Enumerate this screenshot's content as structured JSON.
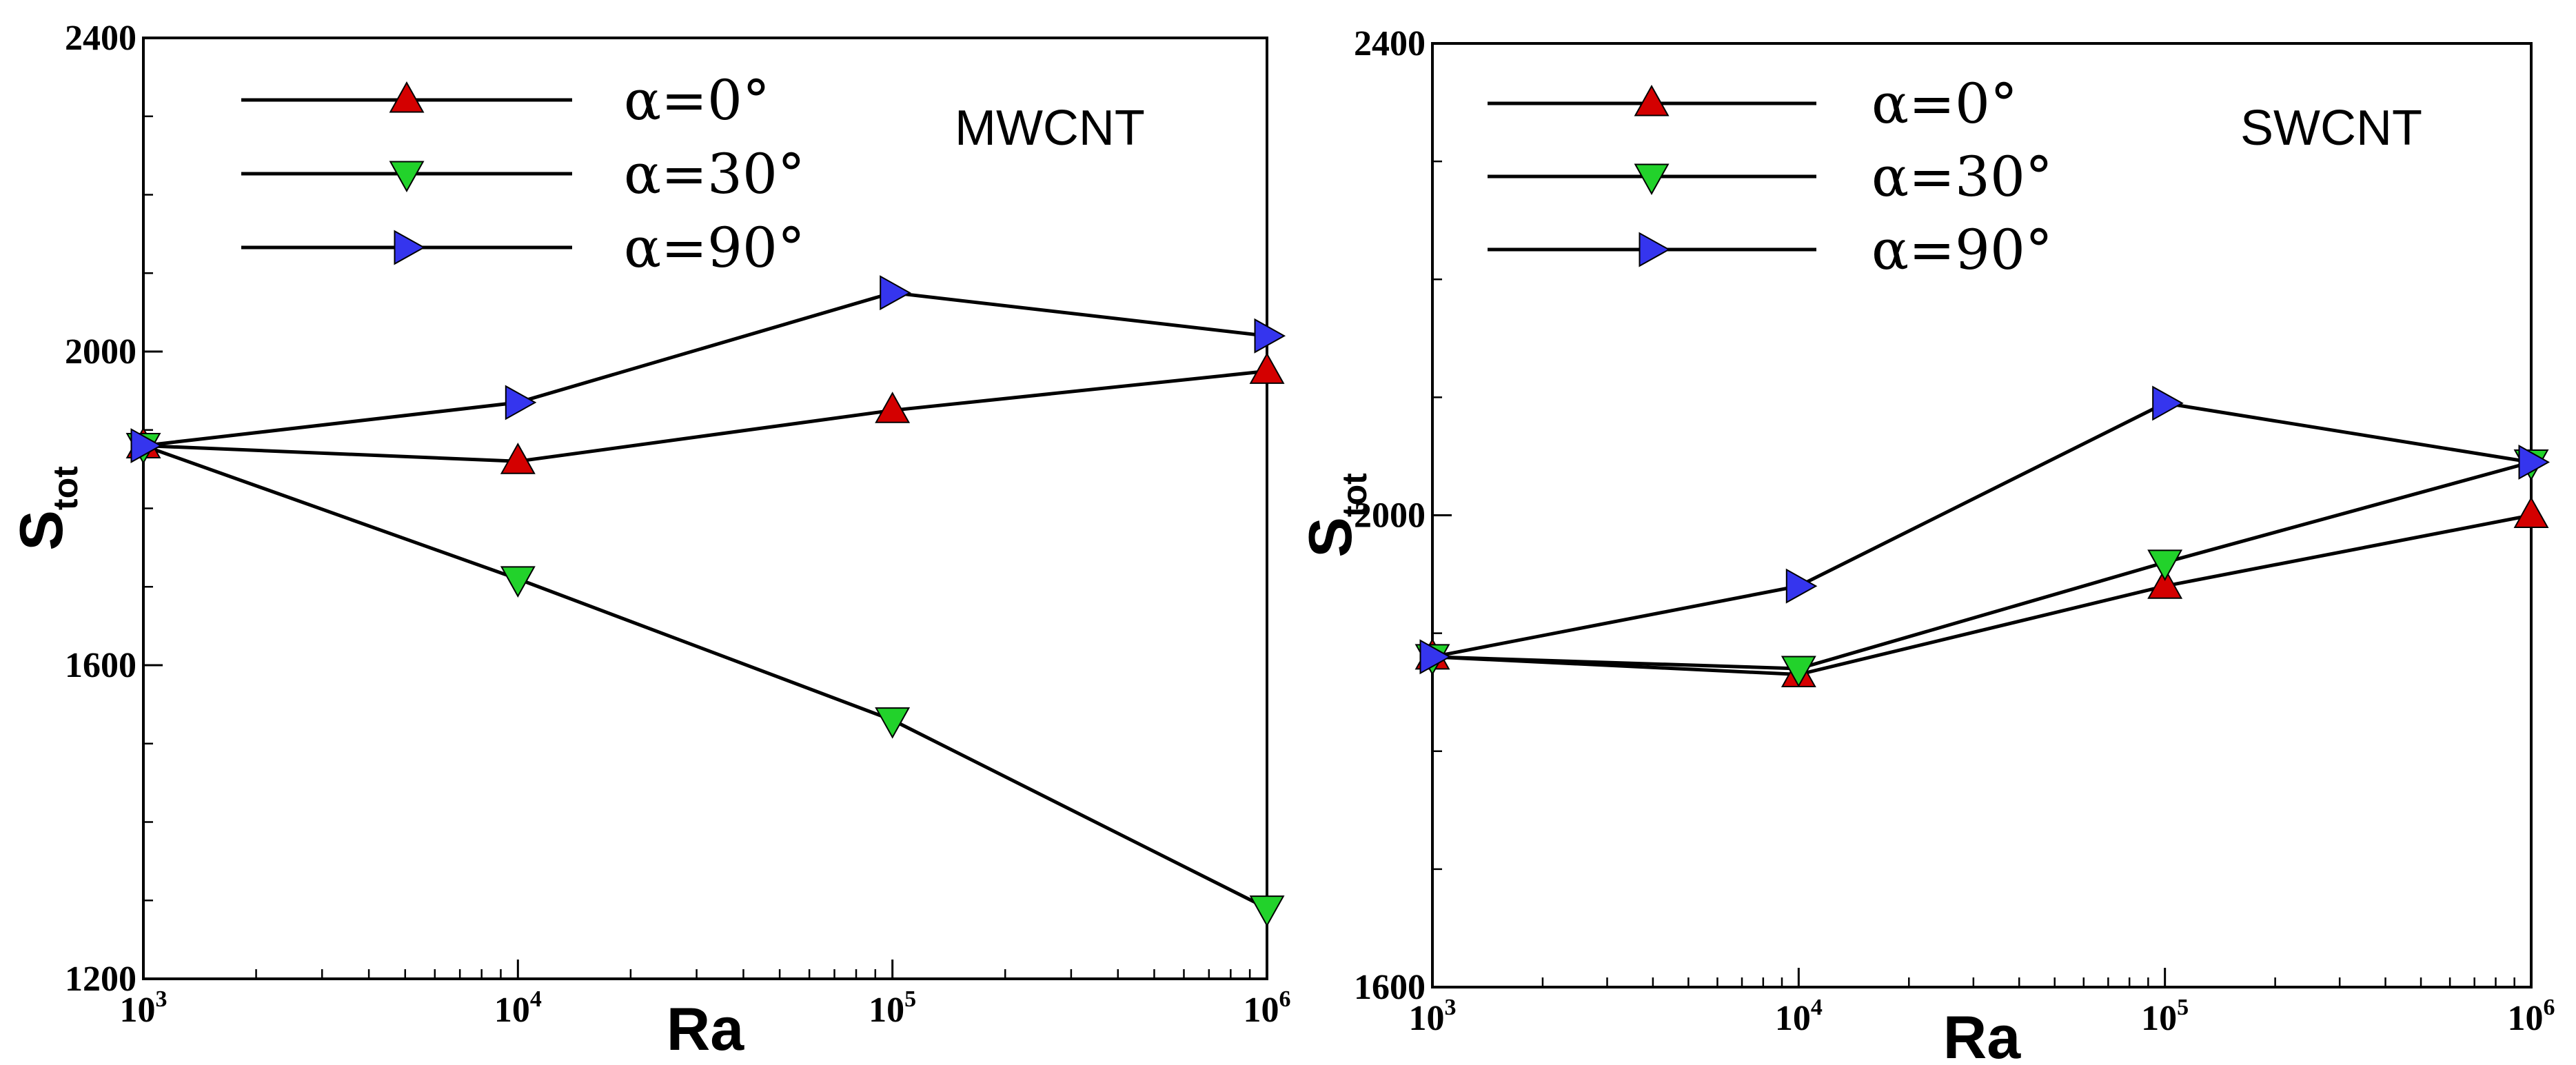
{
  "chart_data": [
    {
      "type": "line",
      "panel_label": "MWCNT",
      "x_scale": "log",
      "x": [
        1000,
        10000,
        100000,
        1000000
      ],
      "x_tick_labels": [
        {
          "base": "10",
          "exp": "3"
        },
        {
          "base": "10",
          "exp": "4"
        },
        {
          "base": "10",
          "exp": "5"
        },
        {
          "base": "10",
          "exp": "6"
        }
      ],
      "xlabel": "Ra",
      "ylabel": {
        "base": "S",
        "sub": "tot"
      },
      "ylim": [
        1200,
        2400
      ],
      "y_major_ticks": [
        1200,
        1600,
        2000,
        2400
      ],
      "y_minor_step": 100,
      "y_tick_labels": [
        "1200",
        "1600",
        "2000",
        "2400"
      ],
      "legend_position": "top-left",
      "series": [
        {
          "name": "α=0°",
          "marker": "triangle-up",
          "color": "#d40000",
          "values": [
            1880,
            1860,
            1925,
            1975
          ]
        },
        {
          "name": "α=30°",
          "marker": "triangle-down",
          "color": "#22d22b",
          "values": [
            1880,
            1710,
            1530,
            1290
          ]
        },
        {
          "name": "α=90°",
          "marker": "triangle-right",
          "color": "#3535ee",
          "values": [
            1880,
            1935,
            2075,
            2020
          ]
        }
      ]
    },
    {
      "type": "line",
      "panel_label": "SWCNT",
      "x_scale": "log",
      "x": [
        1000,
        10000,
        100000,
        1000000
      ],
      "x_tick_labels": [
        {
          "base": "10",
          "exp": "3"
        },
        {
          "base": "10",
          "exp": "4"
        },
        {
          "base": "10",
          "exp": "5"
        },
        {
          "base": "10",
          "exp": "6"
        }
      ],
      "xlabel": "Ra",
      "ylabel": {
        "base": "S",
        "sub": "tot"
      },
      "ylim": [
        1600,
        2400
      ],
      "y_major_ticks": [
        1600,
        2000,
        2400
      ],
      "y_minor_step": 100,
      "y_tick_labels": [
        "1600",
        "2000",
        "2400"
      ],
      "legend_position": "top-left",
      "series": [
        {
          "name": "α=0°",
          "marker": "triangle-up",
          "color": "#d40000",
          "values": [
            1880,
            1865,
            1940,
            2000
          ]
        },
        {
          "name": "α=30°",
          "marker": "triangle-down",
          "color": "#22d22b",
          "values": [
            1880,
            1870,
            1960,
            2045
          ]
        },
        {
          "name": "α=90°",
          "marker": "triangle-right",
          "color": "#3535ee",
          "values": [
            1880,
            1940,
            2095,
            2045
          ]
        }
      ]
    }
  ]
}
